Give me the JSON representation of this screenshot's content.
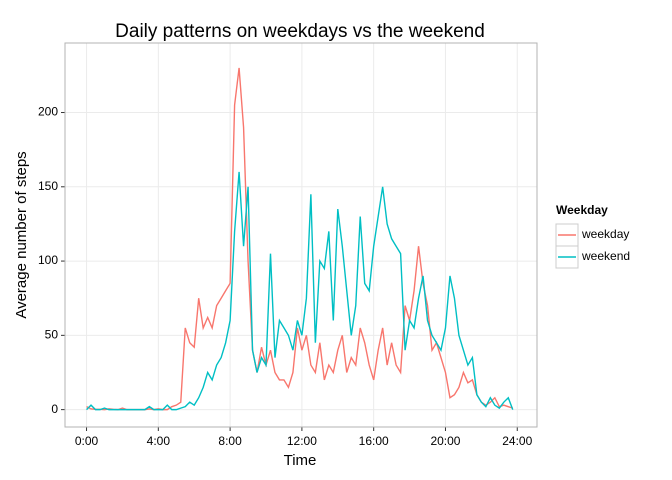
{
  "chart_data": {
    "type": "line",
    "title": "Daily patterns on weekdays vs the weekend",
    "x_label": "Time",
    "y_label": "Average number of steps",
    "legend_title": "Weekday",
    "legend_position": "right",
    "grid": true,
    "x": [
      0,
      0.25,
      0.5,
      0.75,
      1,
      1.25,
      1.5,
      1.75,
      2,
      2.25,
      2.5,
      2.75,
      3,
      3.25,
      3.5,
      3.75,
      4,
      4.25,
      4.5,
      4.75,
      5,
      5.25,
      5.5,
      5.75,
      6,
      6.25,
      6.5,
      6.75,
      7,
      7.25,
      7.5,
      7.75,
      8,
      8.25,
      8.5,
      8.75,
      9,
      9.25,
      9.5,
      9.75,
      10,
      10.25,
      10.5,
      10.75,
      11,
      11.25,
      11.5,
      11.75,
      12,
      12.25,
      12.5,
      12.75,
      13,
      13.25,
      13.5,
      13.75,
      14,
      14.25,
      14.5,
      14.75,
      15,
      15.25,
      15.5,
      15.75,
      16,
      16.25,
      16.5,
      16.75,
      17,
      17.25,
      17.5,
      17.75,
      18,
      18.25,
      18.5,
      18.75,
      19,
      19.25,
      19.5,
      19.75,
      20,
      20.25,
      20.5,
      20.75,
      21,
      21.25,
      21.5,
      21.75,
      22,
      22.25,
      22.5,
      22.75,
      23,
      23.25,
      23.5,
      23.75
    ],
    "series": [
      {
        "name": "weekday",
        "color": "#F8766D",
        "values": [
          2,
          0.5,
          0.2,
          0.2,
          0,
          0.5,
          0.2,
          0,
          1,
          0,
          0,
          0,
          0,
          0,
          0.5,
          0,
          0.5,
          0,
          0,
          2,
          3,
          5,
          55,
          45,
          42,
          75,
          55,
          62,
          55,
          70,
          75,
          80,
          85,
          205,
          230,
          190,
          100,
          40,
          25,
          42,
          30,
          40,
          25,
          20,
          20,
          15,
          25,
          55,
          40,
          50,
          30,
          25,
          45,
          20,
          30,
          25,
          40,
          50,
          25,
          35,
          30,
          55,
          45,
          30,
          20,
          40,
          55,
          30,
          45,
          30,
          25,
          70,
          60,
          80,
          110,
          85,
          70,
          40,
          45,
          35,
          25,
          8,
          10,
          15,
          25,
          18,
          20,
          10,
          5,
          3,
          5,
          8,
          2,
          3,
          2,
          1
        ]
      },
      {
        "name": "weekend",
        "color": "#00BFC4",
        "values": [
          0,
          3,
          0,
          0,
          1,
          0,
          0,
          0,
          0,
          0,
          0,
          0,
          0,
          0,
          2,
          0,
          0,
          0,
          3,
          0,
          0,
          1,
          2,
          5,
          3,
          8,
          15,
          25,
          20,
          30,
          35,
          45,
          60,
          120,
          160,
          110,
          150,
          40,
          25,
          35,
          30,
          105,
          35,
          60,
          55,
          50,
          40,
          60,
          50,
          75,
          145,
          45,
          100,
          95,
          120,
          60,
          135,
          110,
          80,
          50,
          70,
          130,
          85,
          80,
          110,
          130,
          150,
          125,
          115,
          110,
          105,
          40,
          60,
          55,
          75,
          90,
          60,
          50,
          45,
          40,
          55,
          90,
          75,
          50,
          40,
          30,
          35,
          10,
          5,
          2,
          8,
          3,
          1,
          5,
          8,
          0
        ]
      }
    ],
    "xlim": [
      -1.2,
      25.1
    ],
    "ylim": [
      -11.7,
      246.8
    ],
    "xticks": [
      {
        "value": 0,
        "label": "0:00"
      },
      {
        "value": 4,
        "label": "4:00"
      },
      {
        "value": 8,
        "label": "8:00"
      },
      {
        "value": 12,
        "label": "12:00"
      },
      {
        "value": 16,
        "label": "16:00"
      },
      {
        "value": 20,
        "label": "20:00"
      },
      {
        "value": 24,
        "label": "24:00"
      }
    ],
    "yticks": [
      0,
      50,
      100,
      150,
      200
    ]
  }
}
